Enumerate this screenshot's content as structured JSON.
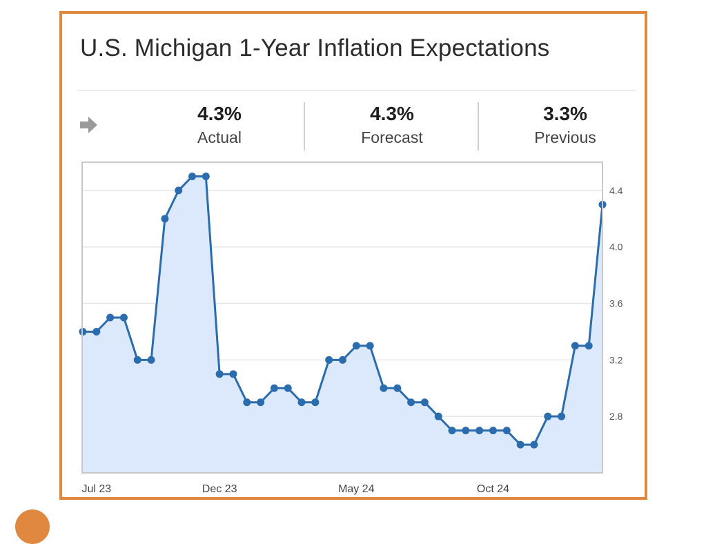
{
  "header": {
    "title": "U.S. Michigan 1-Year Inflation Expectations"
  },
  "stats": [
    {
      "value": "4.3%",
      "label": "Actual"
    },
    {
      "value": "4.3%",
      "label": "Forecast"
    },
    {
      "value": "3.3%",
      "label": "Previous"
    }
  ],
  "colors": {
    "frame": "#e0883f",
    "line": "#2a6cad",
    "fill": "#dce8fb",
    "grid": "#e6e6e6"
  },
  "chart_data": {
    "type": "area",
    "title": "U.S. Michigan 1-Year Inflation Expectations",
    "xlabel": "",
    "ylabel": "",
    "x_tick_labels": [
      "Jul 23",
      "Dec 23",
      "May 24",
      "Oct 24"
    ],
    "x_tick_indices": [
      1,
      10,
      20,
      30
    ],
    "y_ticks": [
      2.8,
      3.2,
      3.6,
      4.0,
      4.4
    ],
    "y_tick_labels": [
      "2.8",
      "3.2",
      "3.6",
      "4.0",
      "4.4"
    ],
    "ylim": [
      2.4,
      4.6
    ],
    "grid": true,
    "series": [
      {
        "name": "1-Year Inflation Expectations",
        "values": [
          3.4,
          3.4,
          3.5,
          3.5,
          3.2,
          3.2,
          4.2,
          4.4,
          4.5,
          4.5,
          3.1,
          3.1,
          2.9,
          2.9,
          3.0,
          3.0,
          2.9,
          2.9,
          3.2,
          3.2,
          3.3,
          3.3,
          3.0,
          3.0,
          2.9,
          2.9,
          2.8,
          2.7,
          2.7,
          2.7,
          2.7,
          2.7,
          2.6,
          2.6,
          2.8,
          2.8,
          3.3,
          3.3,
          4.3
        ]
      }
    ]
  }
}
